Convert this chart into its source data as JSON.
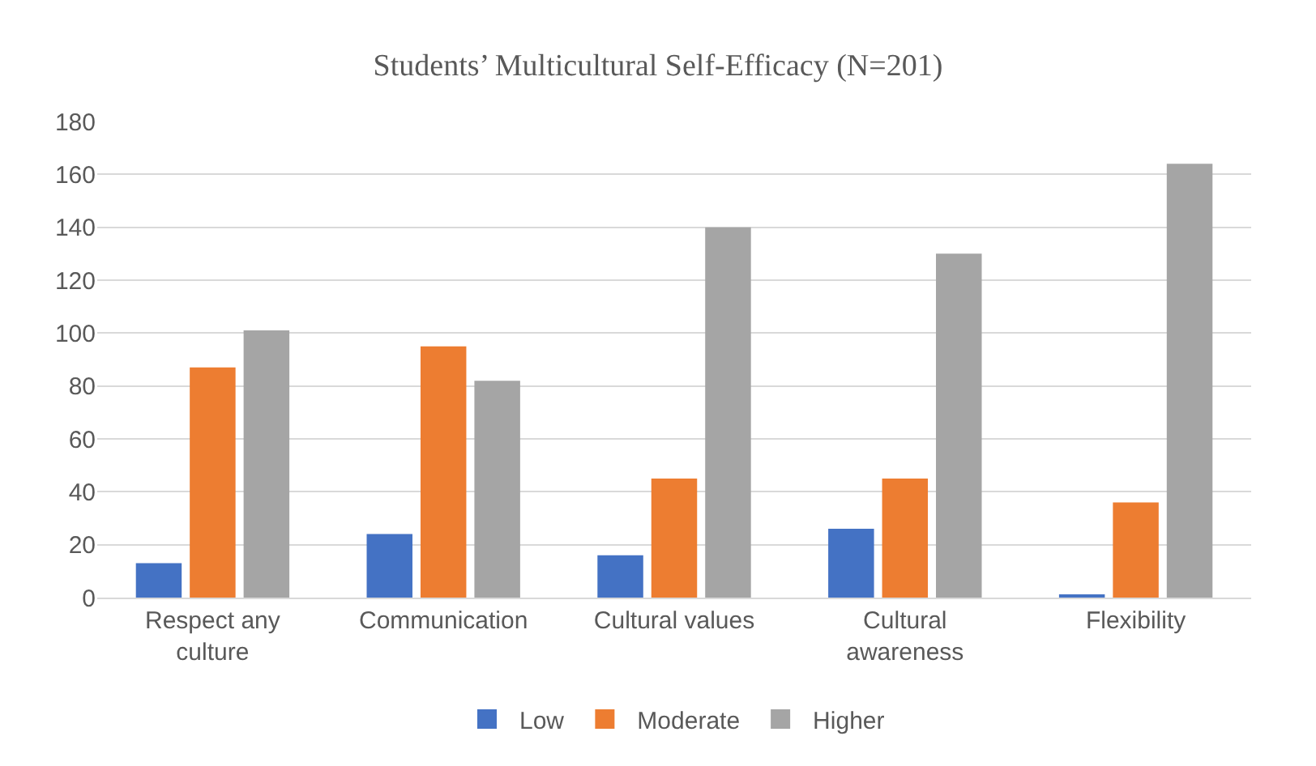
{
  "chart_data": {
    "type": "bar",
    "title": "Students’ Multicultural Self-Efficacy (N=201)",
    "categories": [
      "Respect any culture",
      "Communication",
      "Cultural values",
      "Cultural awareness",
      "Flexibility"
    ],
    "series": [
      {
        "name": "Low",
        "color": "#4472c4",
        "values": [
          13,
          24,
          16,
          26,
          1
        ]
      },
      {
        "name": "Moderate",
        "color": "#ed7d31",
        "values": [
          87,
          95,
          45,
          45,
          36
        ]
      },
      {
        "name": "Higher",
        "color": "#a5a5a5",
        "values": [
          101,
          82,
          140,
          130,
          164
        ]
      }
    ],
    "ylim": [
      0,
      180
    ],
    "yticks": [
      0,
      20,
      40,
      60,
      80,
      100,
      120,
      140,
      160,
      180
    ],
    "grid": "y",
    "legend": "bottom"
  }
}
